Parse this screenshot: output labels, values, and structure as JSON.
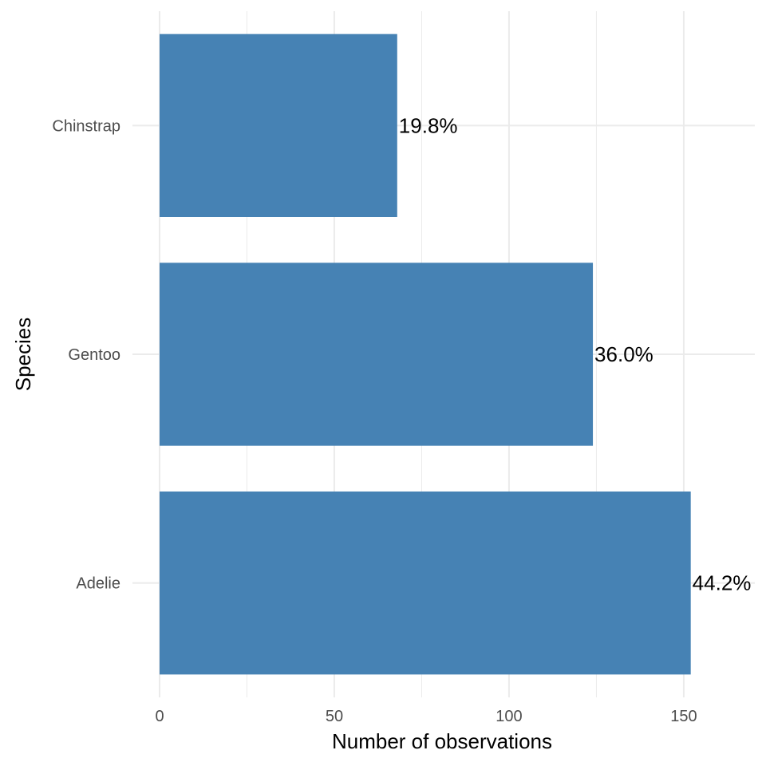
{
  "chart_data": {
    "type": "bar",
    "orientation": "horizontal",
    "categories": [
      "Adelie",
      "Gentoo",
      "Chinstrap"
    ],
    "values": [
      152,
      124,
      68
    ],
    "labels": [
      "44.2%",
      "36.0%",
      "19.8%"
    ],
    "xlabel": "Number of observations",
    "ylabel": "Species",
    "xlim": [
      0,
      170
    ],
    "x_ticks": [
      0,
      50,
      100,
      150
    ],
    "x_minor_ticks": [
      25,
      75,
      125
    ],
    "grid": true,
    "bar_color": "#4682B4"
  }
}
